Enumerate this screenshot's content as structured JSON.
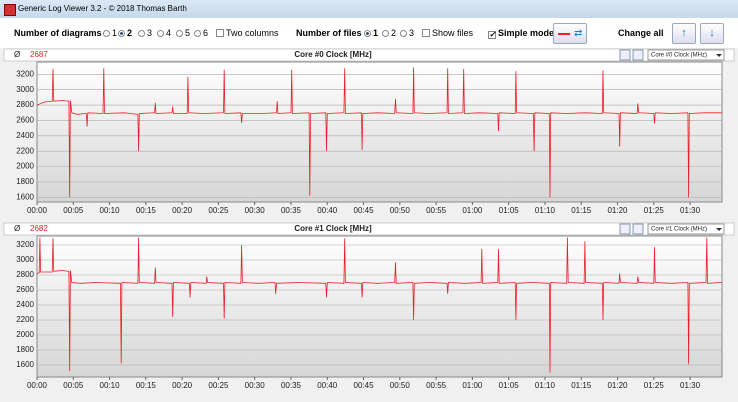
{
  "window_title": "Generic Log Viewer 3.2 - © 2018 Thomas Barth",
  "toolbar": {
    "diagrams_label": "Number of diagrams",
    "diagram_options": [
      "1",
      "2",
      "3",
      "4",
      "5",
      "6"
    ],
    "two_columns": "Two columns",
    "files_label": "Number of files",
    "file_options": [
      "1",
      "2",
      "3"
    ],
    "show_files": "Show files",
    "simple_mode": "Simple mode",
    "change_all": "Change all"
  },
  "chart_data": [
    {
      "type": "line",
      "title": "Core #0 Clock [MHz]",
      "average_symbol": "Ø",
      "average": 2687,
      "selector": "Core #0 Clock (MHz)",
      "x": [
        0,
        1,
        2.1,
        2.2,
        2.3,
        3.5,
        4.4,
        4.5,
        4.6,
        4.8,
        5.5,
        6.8,
        6.9,
        7.0,
        9.1,
        9.2,
        9.3,
        12,
        13.9,
        14.0,
        14.1,
        16.2,
        16.3,
        16.4,
        18.6,
        18.7,
        18.8,
        20.7,
        20.8,
        20.9,
        23,
        25.7,
        25.8,
        25.9,
        28.1,
        28.2,
        28.3,
        31,
        33.0,
        33.1,
        33.2,
        35.0,
        35.1,
        35.2,
        37.5,
        37.6,
        37.7,
        39.8,
        39.9,
        40.0,
        42.3,
        42.4,
        42.5,
        44.7,
        44.8,
        44.9,
        47,
        49.3,
        49.4,
        49.5,
        51.8,
        51.9,
        52.0,
        54,
        56.5,
        56.6,
        56.7,
        58.7,
        58.8,
        58.9,
        61,
        63.5,
        63.6,
        63.7,
        65.9,
        66.0,
        66.1,
        68.4,
        68.5,
        68.6,
        70.6,
        70.7,
        70.8,
        73,
        75.5,
        77.9,
        78.0,
        78.1,
        80.2,
        80.3,
        80.4,
        82.7,
        82.8,
        82.9,
        85.0,
        85.1,
        85.2,
        87.5,
        89.7,
        89.8,
        89.9,
        92,
        94.4
      ],
      "series": [
        {
          "color": "#e8202a",
          "values": [
            2800,
            2840,
            2850,
            3270,
            2850,
            2860,
            2850,
            1600,
            2860,
            2700,
            2680,
            2690,
            2520,
            2700,
            2690,
            3280,
            2690,
            2700,
            2680,
            2200,
            2690,
            2700,
            2830,
            2690,
            2700,
            2780,
            2690,
            2690,
            3170,
            2700,
            2690,
            2700,
            3260,
            2690,
            2700,
            2570,
            2690,
            2690,
            2700,
            2850,
            2690,
            2700,
            3260,
            2690,
            2700,
            1620,
            2690,
            2700,
            2200,
            2690,
            2700,
            3280,
            2690,
            2700,
            2220,
            2690,
            2700,
            2690,
            2880,
            2700,
            2690,
            3290,
            2700,
            2690,
            2700,
            3280,
            2690,
            2700,
            3270,
            2690,
            2700,
            2690,
            2460,
            2700,
            2690,
            3240,
            2700,
            2690,
            2200,
            2700,
            2690,
            1600,
            2700,
            2690,
            2700,
            2690,
            3250,
            2700,
            2690,
            2260,
            2700,
            2690,
            2820,
            2700,
            2690,
            2560,
            2700,
            2690,
            2700,
            1600,
            2690,
            2700,
            2700
          ]
        }
      ],
      "ylim": [
        1540,
        3360
      ],
      "yticks": [
        1600,
        1800,
        2000,
        2200,
        2400,
        2600,
        2800,
        3000,
        3200
      ],
      "xlim": [
        0,
        94.4
      ],
      "xticks": [
        {
          "value": 0,
          "label": "00:00"
        },
        {
          "value": 5,
          "label": "00:05"
        },
        {
          "value": 10,
          "label": "00:10"
        },
        {
          "value": 15,
          "label": "00:15"
        },
        {
          "value": 20,
          "label": "00:20"
        },
        {
          "value": 25,
          "label": "00:25"
        },
        {
          "value": 30,
          "label": "00:30"
        },
        {
          "value": 35,
          "label": "00:35"
        },
        {
          "value": 40,
          "label": "00:40"
        },
        {
          "value": 45,
          "label": "00:45"
        },
        {
          "value": 50,
          "label": "00:50"
        },
        {
          "value": 55,
          "label": "00:55"
        },
        {
          "value": 60,
          "label": "01:00"
        },
        {
          "value": 65,
          "label": "01:05"
        },
        {
          "value": 70,
          "label": "01:10"
        },
        {
          "value": 75,
          "label": "01:15"
        },
        {
          "value": 80,
          "label": "01:20"
        },
        {
          "value": 85,
          "label": "01:25"
        },
        {
          "value": 90,
          "label": "01:30"
        }
      ],
      "grid": true
    },
    {
      "type": "line",
      "title": "Core #1 Clock [MHz]",
      "average_symbol": "Ø",
      "average": 2682,
      "selector": "Core #1 Clock (MHz)",
      "x": [
        0,
        0.3,
        0.4,
        0.5,
        2.1,
        2.2,
        2.3,
        3.5,
        4.4,
        4.5,
        4.6,
        4.8,
        6,
        8,
        11.5,
        11.6,
        11.7,
        13.9,
        14.0,
        14.1,
        16.2,
        16.3,
        16.4,
        18.6,
        18.7,
        18.8,
        21.0,
        21.1,
        21.2,
        23.3,
        23.4,
        23.5,
        25.7,
        25.8,
        25.9,
        28.1,
        28.2,
        28.3,
        30.5,
        32.8,
        32.9,
        33.0,
        36,
        39.8,
        39.9,
        40.0,
        42.3,
        42.4,
        42.5,
        44.7,
        44.8,
        44.9,
        47,
        49.3,
        49.4,
        49.5,
        51.8,
        51.9,
        52.0,
        54,
        56.5,
        56.6,
        56.7,
        59,
        61.2,
        61.3,
        61.4,
        63.5,
        63.6,
        63.7,
        65.9,
        66.0,
        66.1,
        68.3,
        70.6,
        70.7,
        70.8,
        73.0,
        73.1,
        73.2,
        75.4,
        75.5,
        75.6,
        77.9,
        78.0,
        78.1,
        80.2,
        80.3,
        80.4,
        82.7,
        82.8,
        82.9,
        85.0,
        85.1,
        85.2,
        87.5,
        89.7,
        89.8,
        89.9,
        92.2,
        92.3,
        92.4,
        94.4
      ],
      "series": [
        {
          "color": "#e8202a",
          "values": [
            2820,
            2830,
            3300,
            2840,
            2840,
            3290,
            2850,
            2860,
            2850,
            1520,
            2860,
            2700,
            2690,
            2700,
            2690,
            1620,
            2700,
            2690,
            3300,
            2700,
            2690,
            2900,
            2700,
            2690,
            2240,
            2700,
            2690,
            2500,
            2700,
            2690,
            2780,
            2700,
            2690,
            2220,
            2700,
            2690,
            3200,
            2700,
            2690,
            2700,
            2550,
            2690,
            2700,
            2690,
            2500,
            2700,
            2690,
            3290,
            2700,
            2690,
            2500,
            2700,
            2690,
            2700,
            2970,
            2690,
            2700,
            2200,
            2690,
            2700,
            2690,
            2550,
            2700,
            2690,
            2700,
            3150,
            2690,
            2700,
            3150,
            2690,
            2700,
            2200,
            2690,
            2700,
            2690,
            1500,
            2700,
            2690,
            3300,
            2700,
            2690,
            3250,
            2700,
            2690,
            2200,
            2700,
            2690,
            2820,
            2700,
            2690,
            2780,
            2700,
            2690,
            3170,
            2700,
            2690,
            2700,
            1610,
            2690,
            2700,
            3300,
            2690,
            2700
          ]
        }
      ],
      "ylim": [
        1440,
        3320
      ],
      "yticks": [
        1600,
        1800,
        2000,
        2200,
        2400,
        2600,
        2800,
        3000,
        3200
      ],
      "xlim": [
        0,
        94.4
      ],
      "xticks": [
        {
          "value": 0,
          "label": "00:00"
        },
        {
          "value": 5,
          "label": "00:05"
        },
        {
          "value": 10,
          "label": "00:10"
        },
        {
          "value": 15,
          "label": "00:15"
        },
        {
          "value": 20,
          "label": "00:20"
        },
        {
          "value": 25,
          "label": "00:25"
        },
        {
          "value": 30,
          "label": "00:30"
        },
        {
          "value": 35,
          "label": "00:35"
        },
        {
          "value": 40,
          "label": "00:40"
        },
        {
          "value": 45,
          "label": "00:45"
        },
        {
          "value": 50,
          "label": "00:50"
        },
        {
          "value": 55,
          "label": "00:55"
        },
        {
          "value": 60,
          "label": "01:00"
        },
        {
          "value": 65,
          "label": "01:05"
        },
        {
          "value": 70,
          "label": "01:10"
        },
        {
          "value": 75,
          "label": "01:15"
        },
        {
          "value": 80,
          "label": "01:20"
        },
        {
          "value": 85,
          "label": "01:25"
        },
        {
          "value": 90,
          "label": "01:30"
        }
      ],
      "grid": true
    }
  ]
}
